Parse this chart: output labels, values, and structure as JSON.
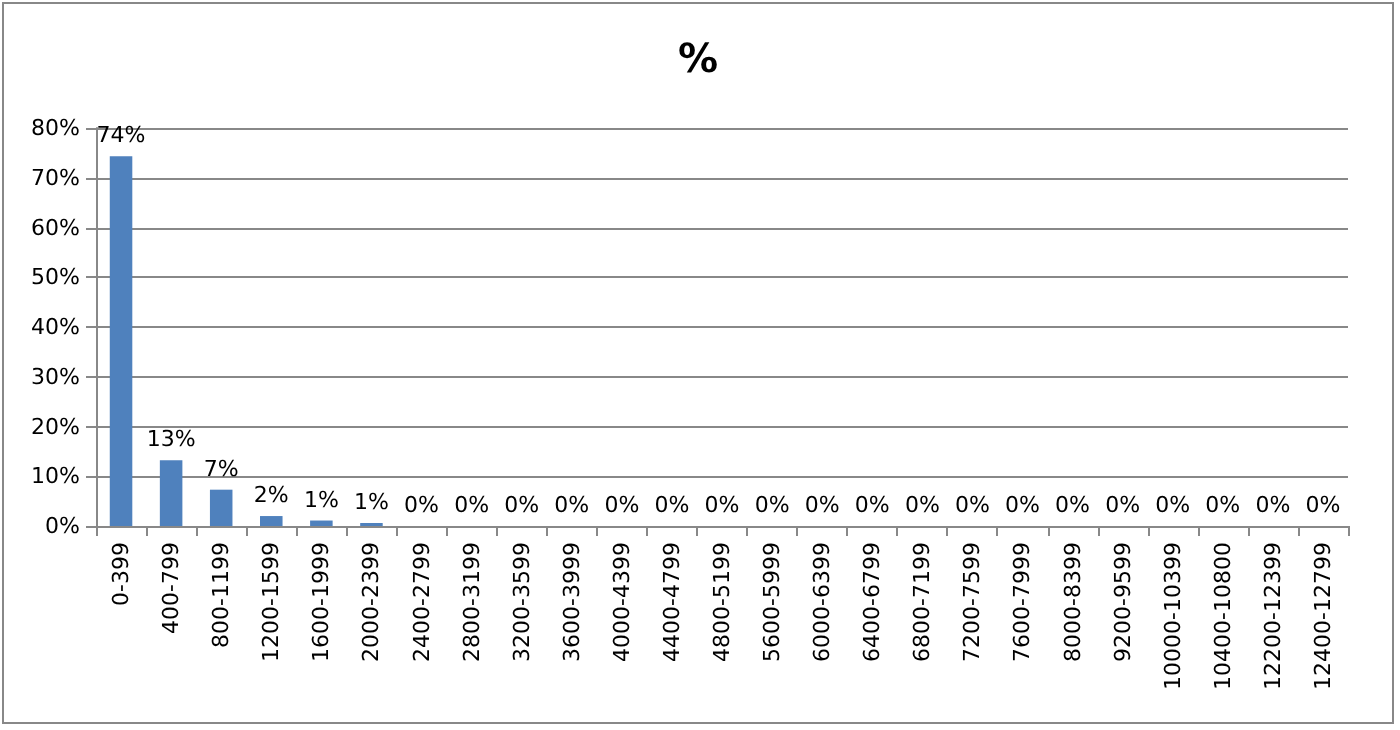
{
  "chart_data": {
    "type": "bar",
    "title": "%",
    "categories": [
      "0-399",
      "400-799",
      "800-1199",
      "1200-1599",
      "1600-1999",
      "2000-2399",
      "2400-2799",
      "2800-3199",
      "3200-3599",
      "3600-3999",
      "4000-4399",
      "4400-4799",
      "4800-5199",
      "5600-5999",
      "6000-6399",
      "6400-6799",
      "6800-7199",
      "7200-7599",
      "7600-7999",
      "8000-8399",
      "9200-9599",
      "10000-10399",
      "10400-10800",
      "12200-12399",
      "12400-12799"
    ],
    "values": [
      74.3,
      13.2,
      7.3,
      2.0,
      1.1,
      0.6,
      0,
      0,
      0,
      0,
      0,
      0,
      0,
      0,
      0,
      0,
      0,
      0,
      0,
      0,
      0,
      0,
      0,
      0,
      0
    ],
    "value_labels": [
      "74%",
      "13%",
      "7%",
      "2%",
      "1%",
      "1%",
      "0%",
      "0%",
      "0%",
      "0%",
      "0%",
      "0%",
      "0%",
      "0%",
      "0%",
      "0%",
      "0%",
      "0%",
      "0%",
      "0%",
      "0%",
      "0%",
      "0%",
      "0%",
      "0%"
    ],
    "color": "#4f81bd",
    "ylim": [
      0,
      80
    ],
    "yticks": [
      {
        "value": 0,
        "label": "0%"
      },
      {
        "value": 10,
        "label": "10%"
      },
      {
        "value": 20,
        "label": "20%"
      },
      {
        "value": 30,
        "label": "30%"
      },
      {
        "value": 40,
        "label": "40%"
      },
      {
        "value": 50,
        "label": "50%"
      },
      {
        "value": 60,
        "label": "60%"
      },
      {
        "value": 70,
        "label": "70%"
      },
      {
        "value": 80,
        "label": "80%"
      }
    ],
    "grid": "y"
  }
}
